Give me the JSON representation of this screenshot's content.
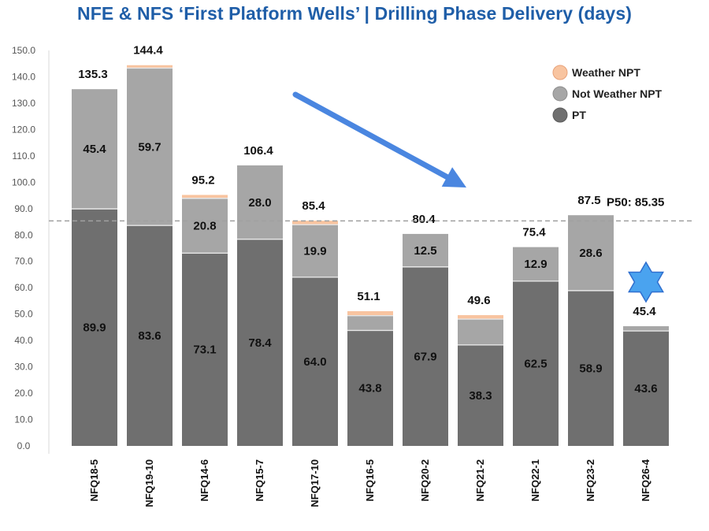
{
  "chart_data": {
    "type": "bar",
    "stacked": true,
    "title": "NFE & NFS ‘First Platform Wells’ | Drilling Phase Delivery (days)",
    "ylim": [
      0,
      150
    ],
    "ytick_labels": [
      "0.0",
      "10.0",
      "20.0",
      "30.0",
      "40.0",
      "50.0",
      "60.0",
      "70.0",
      "80.0",
      "90.0",
      "100.0",
      "110.0",
      "120.0",
      "130.0",
      "140.0",
      "150.0"
    ],
    "categories": [
      "NFQ18-5",
      "NFQ19-10",
      "NFQ14-6",
      "NFQ15-7",
      "NFQ17-10",
      "NFQ16-5",
      "NFQ20-2",
      "NFQ21-2",
      "NFQ22-1",
      "NFQ23-2",
      "NFQ26-4"
    ],
    "series": [
      {
        "name": "PT",
        "color": "#6f6f6f",
        "values": [
          89.9,
          83.6,
          73.1,
          78.4,
          64.0,
          43.8,
          67.9,
          38.3,
          62.5,
          58.9,
          43.6
        ],
        "labels": [
          "89.9",
          "83.6",
          "73.1",
          "78.4",
          "64.0",
          "43.8",
          "67.9",
          "38.3",
          "62.5",
          "58.9",
          "43.6"
        ]
      },
      {
        "name": "Not Weather NPT",
        "color": "#a6a6a6",
        "values": [
          45.4,
          59.7,
          20.8,
          28.0,
          19.9,
          5.6,
          12.5,
          9.8,
          12.9,
          28.6,
          1.8
        ],
        "labels": [
          "45.4",
          "59.7",
          "20.8",
          "28.0",
          "19.9",
          "",
          "12.5",
          "",
          "12.9",
          "28.6",
          ""
        ]
      },
      {
        "name": "Weather NPT",
        "color": "#f8c4a0",
        "values": [
          0,
          1.1,
          1.3,
          0,
          1.5,
          1.7,
          0,
          1.5,
          0,
          0,
          0
        ],
        "labels": [
          "",
          "",
          "",
          "",
          "",
          "",
          "",
          "",
          "",
          "",
          ""
        ]
      }
    ],
    "totals": [
      "135.3",
      "144.4",
      "95.2",
      "106.4",
      "85.4",
      "51.1",
      "80.4",
      "49.6",
      "75.4",
      "87.5",
      "45.4"
    ],
    "legend": [
      "Weather NPT",
      "Not Weather NPT",
      "PT"
    ],
    "legend_position": "top-right",
    "reference_line": {
      "value": 85.35,
      "label": "P50: 85.35"
    },
    "annotations": [
      "downward-trend-arrow",
      "star-marker-NFQ26-4"
    ],
    "colors": {
      "title": "#1f5ea8",
      "arrow": "#4a86e0",
      "star": "#4aa3ef",
      "star_stroke": "#2f6fcf",
      "ref_line": "#a0a0a0"
    }
  }
}
